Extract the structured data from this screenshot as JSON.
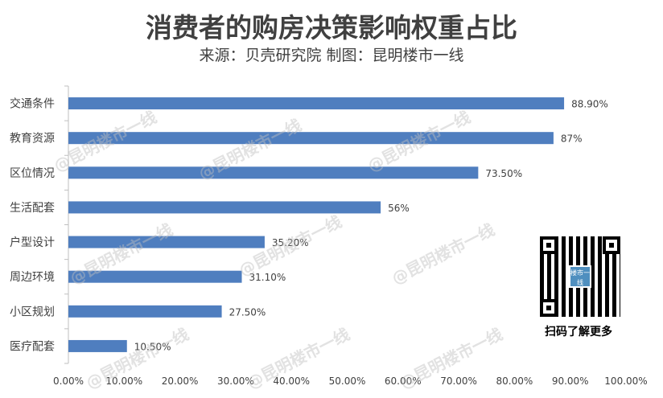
{
  "title": "消费者的购房决策影响权重占比",
  "subtitle": "来源：贝壳研究院 制图：昆明楼市一线",
  "chart_data": {
    "type": "bar",
    "orientation": "horizontal",
    "categories": [
      "交通条件",
      "教育资源",
      "区位情况",
      "生活配套",
      "户型设计",
      "周边环境",
      "小区规划",
      "医疗配套"
    ],
    "values": [
      88.9,
      87,
      73.5,
      56,
      35.2,
      31.1,
      27.5,
      10.5
    ],
    "data_labels": [
      "88.90%",
      "87%",
      "73.50%",
      "56%",
      "35.20%",
      "31.10%",
      "27.50%",
      "10.50%"
    ],
    "xlim": [
      0,
      100
    ],
    "x_ticks": [
      "0.00%",
      "10.00%",
      "20.00%",
      "30.00%",
      "40.00%",
      "50.00%",
      "60.00%",
      "70.00%",
      "80.00%",
      "90.00%",
      "100.00%"
    ],
    "grid": false,
    "bar_color": "#4f7ebf"
  },
  "qr": {
    "caption": "扫码了解更多",
    "logo_text": "楼市一线"
  },
  "watermark": "@昆明楼市一线"
}
